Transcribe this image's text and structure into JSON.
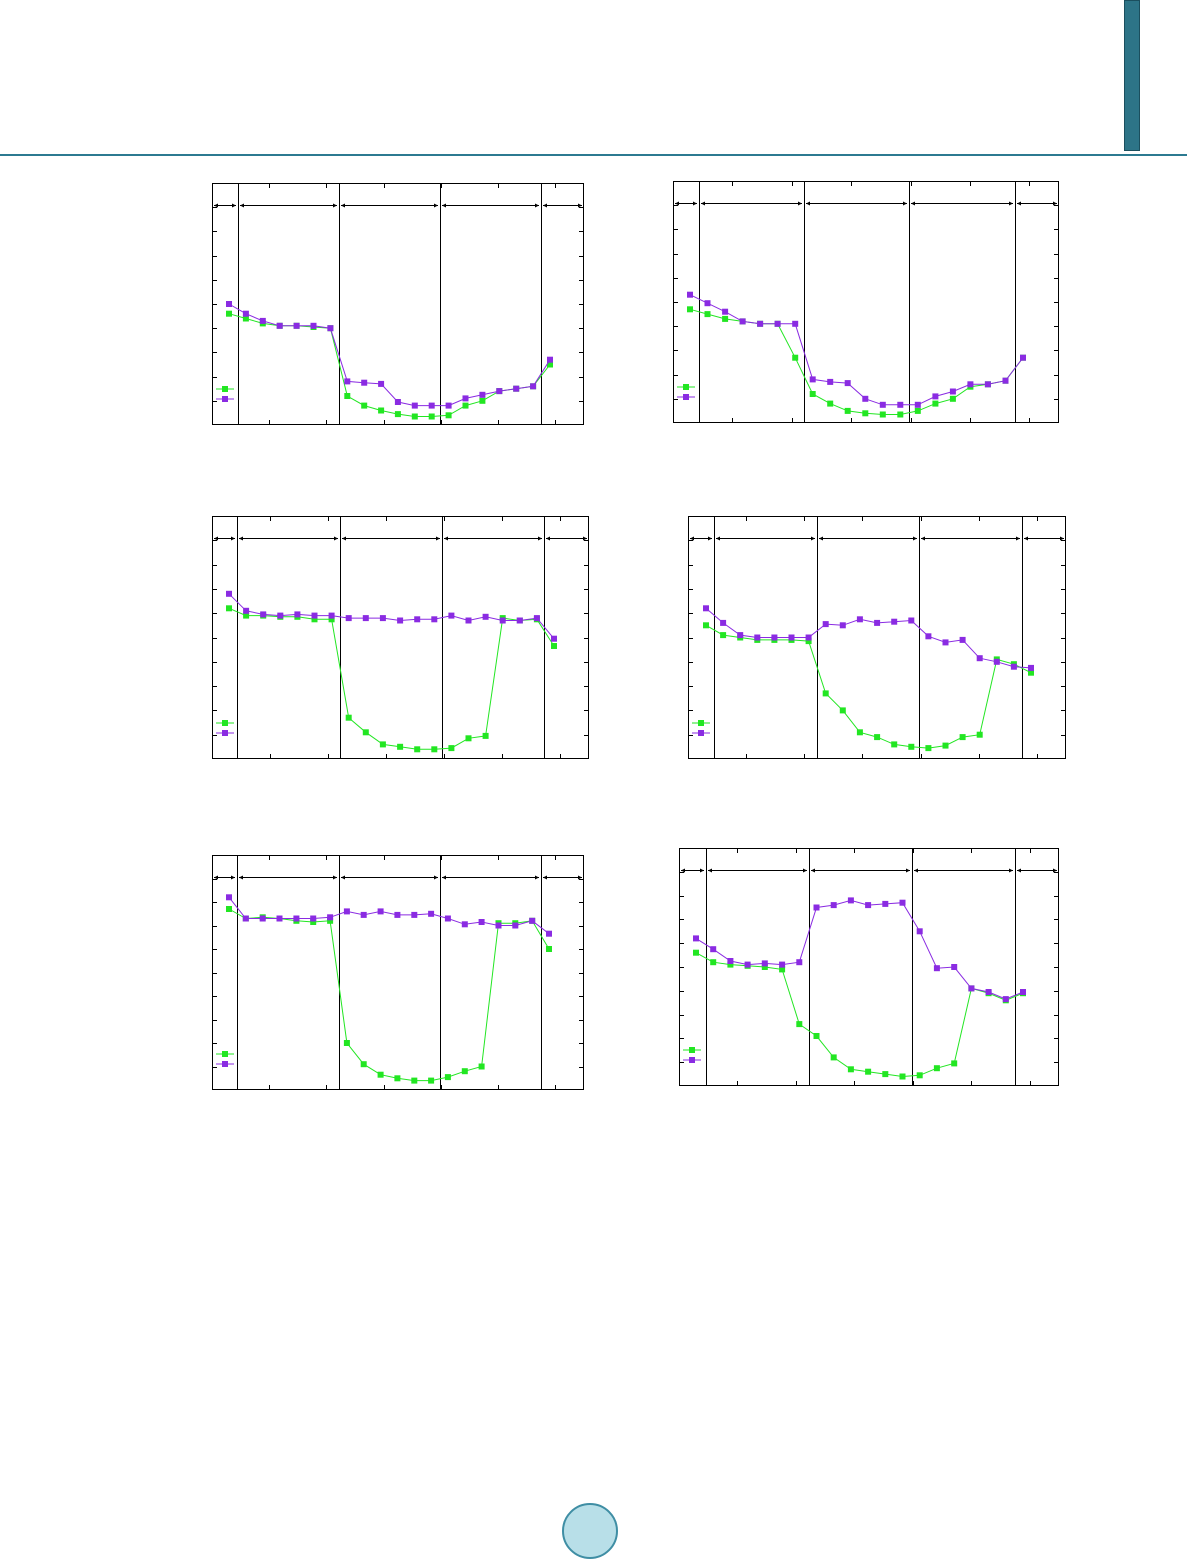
{
  "colors": {
    "series_a": "#22e622",
    "series_b": "#8a2be2",
    "accent": "#2c7a91"
  },
  "chart_data": [
    {
      "type": "line",
      "x": [
        1,
        2,
        3,
        4,
        5,
        6,
        7,
        8,
        9,
        10,
        11,
        12,
        13,
        14,
        15,
        16,
        17,
        18,
        19,
        20
      ],
      "ylim": [
        0,
        10
      ],
      "regions": 5,
      "series": [
        {
          "values": [
            4.6,
            4.4,
            4.2,
            4.1,
            4.1,
            4.05,
            4.0,
            1.2,
            0.8,
            0.6,
            0.45,
            0.35,
            0.35,
            0.4,
            0.8,
            1.0,
            1.4,
            1.5,
            1.6,
            2.5
          ]
        },
        {
          "values": [
            5.0,
            4.6,
            4.3,
            4.1,
            4.1,
            4.1,
            4.0,
            1.8,
            1.75,
            1.7,
            0.95,
            0.8,
            0.8,
            0.8,
            1.1,
            1.25,
            1.4,
            1.5,
            1.6,
            2.7
          ]
        }
      ]
    },
    {
      "type": "line",
      "x": [
        1,
        2,
        3,
        4,
        5,
        6,
        7,
        8,
        9,
        10,
        11,
        12,
        13,
        14,
        15,
        16,
        17,
        18,
        19,
        20
      ],
      "ylim": [
        0,
        10
      ],
      "regions": 5,
      "series": [
        {
          "values": [
            4.7,
            4.5,
            4.3,
            4.2,
            4.1,
            4.1,
            2.7,
            1.2,
            0.8,
            0.5,
            0.4,
            0.35,
            0.35,
            0.5,
            0.8,
            1.0,
            1.5,
            1.6,
            1.75,
            2.7
          ]
        },
        {
          "values": [
            5.3,
            4.95,
            4.6,
            4.2,
            4.1,
            4.1,
            4.1,
            1.8,
            1.7,
            1.65,
            1.0,
            0.75,
            0.75,
            0.75,
            1.1,
            1.3,
            1.6,
            1.6,
            1.75,
            2.7
          ]
        }
      ]
    },
    {
      "type": "line",
      "x": [
        1,
        2,
        3,
        4,
        5,
        6,
        7,
        8,
        9,
        10,
        11,
        12,
        13,
        14,
        15,
        16,
        17,
        18,
        19,
        20
      ],
      "ylim": [
        0,
        10
      ],
      "regions": 5,
      "series": [
        {
          "values": [
            6.2,
            5.9,
            5.9,
            5.85,
            5.85,
            5.75,
            5.75,
            1.7,
            1.1,
            0.6,
            0.5,
            0.4,
            0.4,
            0.45,
            0.85,
            0.95,
            5.8,
            5.7,
            5.75,
            4.65
          ]
        },
        {
          "values": [
            6.8,
            6.1,
            5.95,
            5.9,
            5.95,
            5.9,
            5.9,
            5.8,
            5.8,
            5.8,
            5.7,
            5.75,
            5.75,
            5.9,
            5.7,
            5.85,
            5.7,
            5.7,
            5.8,
            4.95
          ]
        }
      ]
    },
    {
      "type": "line",
      "x": [
        1,
        2,
        3,
        4,
        5,
        6,
        7,
        8,
        9,
        10,
        11,
        12,
        13,
        14,
        15,
        16,
        17,
        18,
        19,
        20
      ],
      "ylim": [
        0,
        10
      ],
      "regions": 5,
      "series": [
        {
          "values": [
            5.5,
            5.1,
            5.0,
            4.9,
            4.9,
            4.9,
            4.85,
            2.7,
            2.0,
            1.1,
            0.9,
            0.6,
            0.5,
            0.45,
            0.55,
            0.9,
            1.0,
            4.1,
            3.9,
            3.55
          ]
        },
        {
          "values": [
            6.2,
            5.6,
            5.1,
            5.0,
            5.0,
            5.0,
            5.0,
            5.55,
            5.5,
            5.75,
            5.6,
            5.65,
            5.7,
            5.05,
            4.8,
            4.9,
            4.15,
            4.0,
            3.8,
            3.75
          ]
        }
      ]
    },
    {
      "type": "line",
      "x": [
        1,
        2,
        3,
        4,
        5,
        6,
        7,
        8,
        9,
        10,
        11,
        12,
        13,
        14,
        15,
        16,
        17,
        18,
        19,
        20
      ],
      "ylim": [
        0,
        10
      ],
      "regions": 5,
      "series": [
        {
          "values": [
            7.7,
            7.3,
            7.35,
            7.3,
            7.2,
            7.15,
            7.2,
            2.0,
            1.1,
            0.65,
            0.5,
            0.4,
            0.4,
            0.55,
            0.8,
            1.0,
            7.1,
            7.1,
            7.2,
            6.0
          ]
        },
        {
          "values": [
            8.2,
            7.3,
            7.3,
            7.3,
            7.3,
            7.3,
            7.35,
            7.6,
            7.45,
            7.6,
            7.45,
            7.45,
            7.5,
            7.3,
            7.05,
            7.15,
            7.0,
            7.0,
            7.2,
            6.65
          ]
        }
      ]
    },
    {
      "type": "line",
      "x": [
        1,
        2,
        3,
        4,
        5,
        6,
        7,
        8,
        9,
        10,
        11,
        12,
        13,
        14,
        15,
        16,
        17,
        18,
        19,
        20
      ],
      "ylim": [
        0,
        10
      ],
      "regions": 5,
      "series": [
        {
          "values": [
            5.6,
            5.2,
            5.1,
            5.05,
            5.0,
            4.9,
            2.6,
            2.1,
            1.2,
            0.7,
            0.6,
            0.5,
            0.4,
            0.45,
            0.75,
            0.95,
            4.1,
            3.9,
            3.6,
            3.9
          ]
        },
        {
          "values": [
            6.2,
            5.75,
            5.25,
            5.1,
            5.15,
            5.1,
            5.2,
            7.5,
            7.6,
            7.8,
            7.6,
            7.65,
            7.7,
            6.5,
            4.95,
            5.0,
            4.1,
            3.95,
            3.65,
            3.95
          ]
        }
      ]
    }
  ]
}
